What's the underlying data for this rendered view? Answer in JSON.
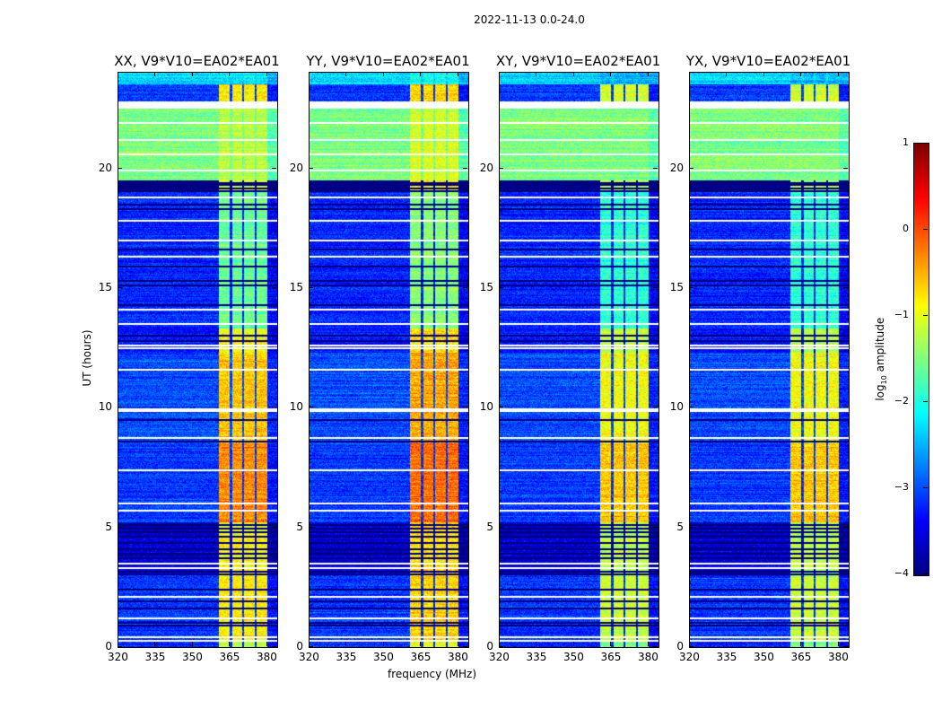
{
  "suptitle": "2022-11-13 0.0-24.0",
  "chart_data": {
    "type": "heatmap",
    "title": "2022-11-13 0.0-24.0",
    "xlabel": "frequency (MHz)",
    "ylabel": "UT (hours)",
    "xlim": [
      320,
      384
    ],
    "ylim": [
      0,
      24
    ],
    "xticks": [
      320,
      335,
      350,
      365,
      380
    ],
    "yticks": [
      0,
      5,
      10,
      15,
      20
    ],
    "colorbar": {
      "label_prefix": "log",
      "label_sub": "10",
      "label_suffix": " amplitude",
      "range": [
        -4,
        1
      ],
      "ticks": [
        1,
        0,
        -1,
        -2,
        -3,
        -4
      ],
      "colormap": "jet"
    },
    "rfi_band_mhz": [
      360.5,
      380
    ],
    "rfi_gaps_mhz": [
      365.3,
      370.3,
      375.3
    ],
    "time_segments": [
      {
        "t": [
          23.5,
          24.0
        ],
        "base": -2.3,
        "rfi": -2.2
      },
      {
        "t": [
          22.8,
          23.5
        ],
        "base": -3.1,
        "rfi": -0.8
      },
      {
        "t": [
          22.5,
          22.8
        ],
        "base": null,
        "rfi": null
      },
      {
        "t": [
          19.5,
          22.5
        ],
        "base": -1.5,
        "rfi": -1.2
      },
      {
        "t": [
          19.0,
          19.5
        ],
        "base": -4.0,
        "rfi": -1.0
      },
      {
        "t": [
          13.3,
          19.0
        ],
        "base": -3.2,
        "rfi": -1.6
      },
      {
        "t": [
          12.3,
          13.3
        ],
        "base": -3.3,
        "rfi": -0.9
      },
      {
        "t": [
          8.5,
          12.3
        ],
        "base": -3.0,
        "rfi": -0.6
      },
      {
        "t": [
          5.2,
          8.5
        ],
        "base": -3.1,
        "rfi": -0.3
      },
      {
        "t": [
          3.0,
          5.2
        ],
        "base": -3.6,
        "rfi": -0.9
      },
      {
        "t": [
          0.3,
          3.0
        ],
        "base": -3.1,
        "rfi": -0.8
      },
      {
        "t": [
          0.0,
          0.3
        ],
        "base": -3.2,
        "rfi": -1.2
      }
    ],
    "flagged_hours": [
      22.65,
      21.9,
      21.2,
      20.6,
      19.9,
      18.8,
      17.8,
      17.0,
      16.3,
      14.1,
      13.5,
      12.5,
      12.6,
      11.6,
      9.95,
      9.85,
      8.75,
      7.4,
      6.0,
      5.7,
      3.5,
      3.3,
      2.1,
      1.2,
      0.4,
      0.25
    ],
    "dark_hours": [
      19.4,
      19.3,
      19.15,
      19.05,
      18.5,
      18.3,
      16.6,
      15.9,
      15.3,
      15.1,
      14.3,
      13.0,
      12.8,
      9.5,
      8.6,
      5.1,
      4.95,
      4.8,
      4.6,
      4.35,
      4.1,
      3.9,
      3.7,
      3.15,
      3.05,
      2.4,
      1.9,
      1.6,
      1.0,
      0.9
    ],
    "panels": [
      {
        "title": "XX, V9*V10=EA02*EA01",
        "rfi_offset": 0.0
      },
      {
        "title": "YY, V9*V10=EA02*EA01",
        "rfi_offset": 0.15
      },
      {
        "title": "XY, V9*V10=EA02*EA01",
        "rfi_offset": -0.3
      },
      {
        "title": "YX, V9*V10=EA02*EA01",
        "rfi_offset": -0.3
      }
    ]
  }
}
